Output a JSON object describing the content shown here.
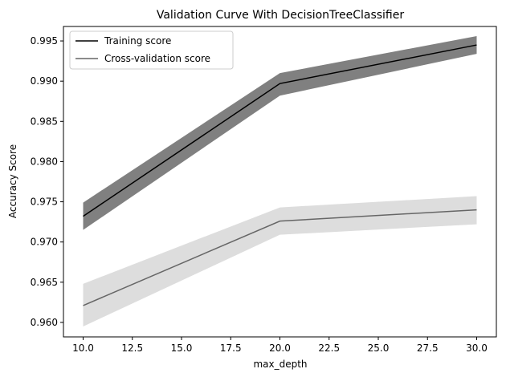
{
  "chart_data": {
    "type": "line",
    "title": "Validation Curve With DecisionTreeClassifier",
    "xlabel": "max_depth",
    "ylabel": "Accuracy Score",
    "x": [
      10,
      20,
      30
    ],
    "xlim": [
      9,
      31
    ],
    "ylim": [
      0.9582,
      0.9968
    ],
    "xticks": [
      "10.0",
      "12.5",
      "15.0",
      "17.5",
      "20.0",
      "22.5",
      "25.0",
      "27.5",
      "30.0"
    ],
    "yticks": [
      "0.960",
      "0.965",
      "0.970",
      "0.975",
      "0.980",
      "0.985",
      "0.990",
      "0.995"
    ],
    "grid": false,
    "legend_position": "upper-left",
    "series": [
      {
        "name": "Training score",
        "values": [
          0.9732,
          0.9897,
          0.9945
        ],
        "band_lower": [
          0.9715,
          0.9882,
          0.9934
        ],
        "band_upper": [
          0.9749,
          0.991,
          0.9956
        ],
        "line_color": "#000000",
        "band_color": "#808080"
      },
      {
        "name": "Cross-validation score",
        "values": [
          0.9621,
          0.9726,
          0.974
        ],
        "band_lower": [
          0.9595,
          0.9709,
          0.9722
        ],
        "band_upper": [
          0.9648,
          0.9743,
          0.9757
        ],
        "line_color": "#666666",
        "band_color": "#dddddd"
      }
    ]
  }
}
